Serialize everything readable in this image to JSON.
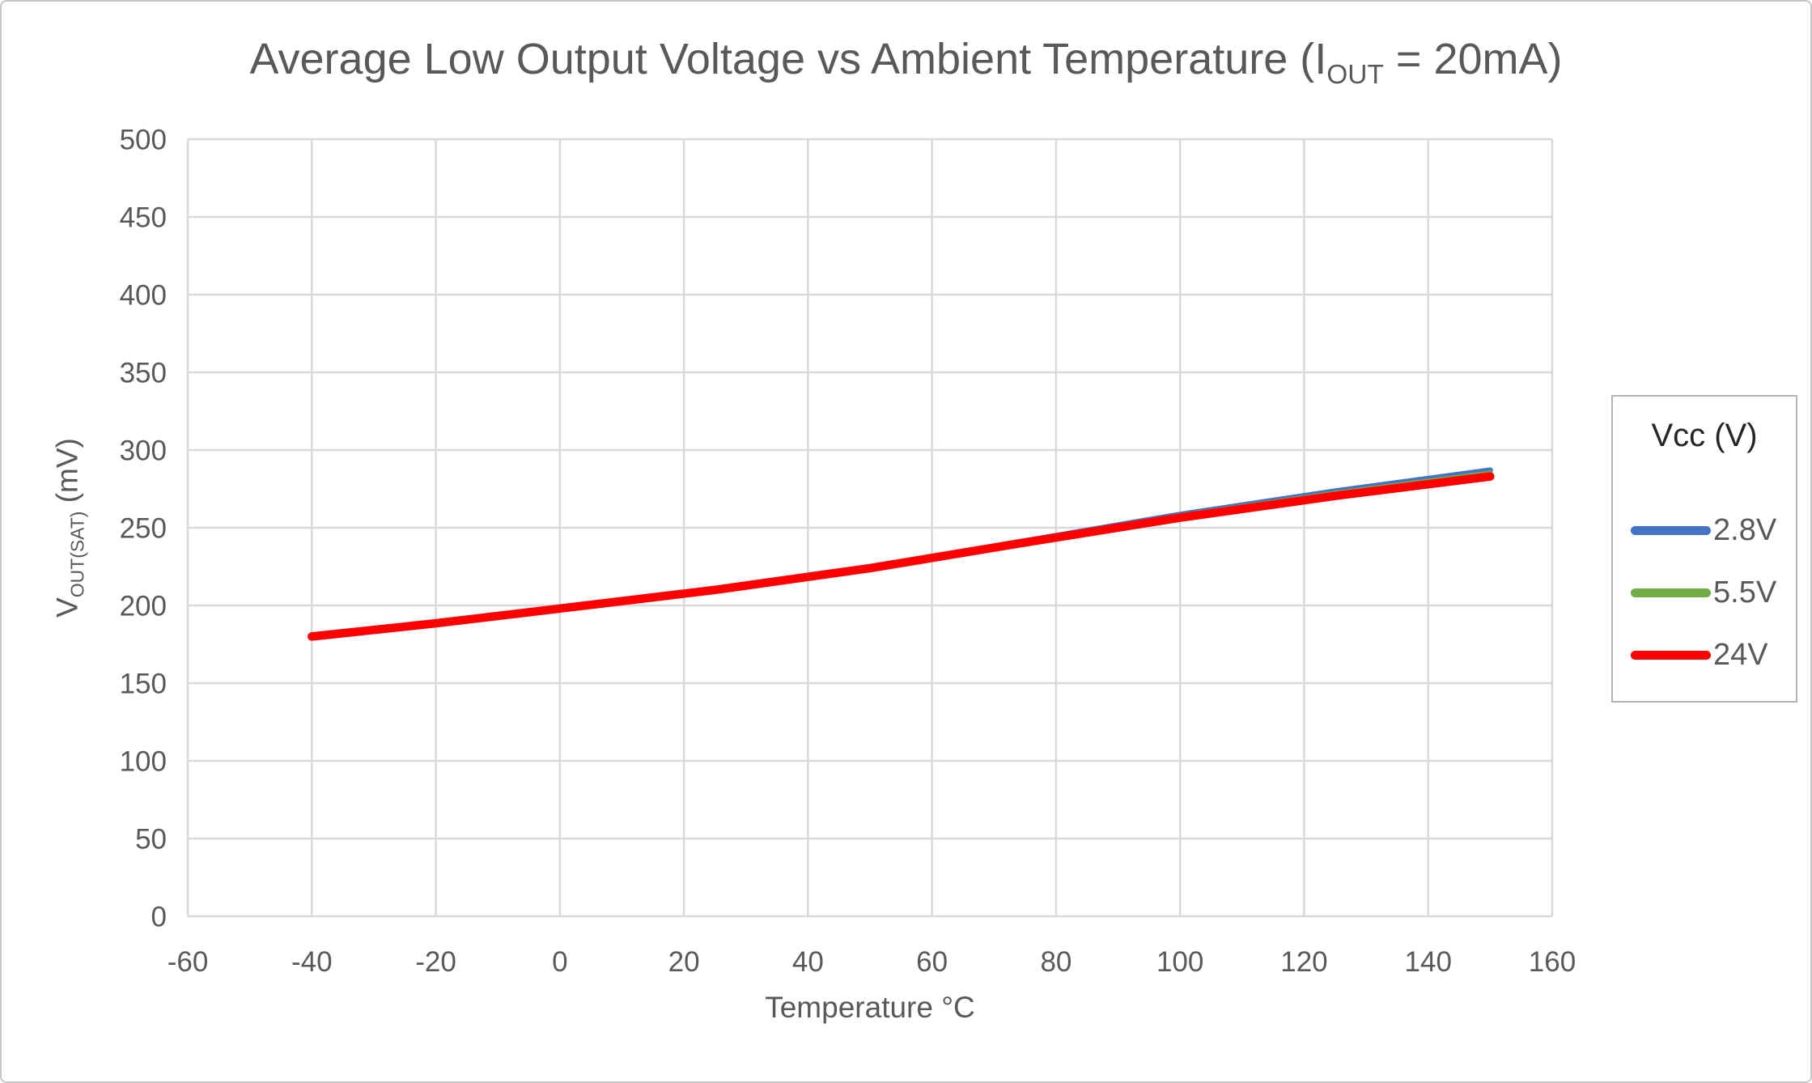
{
  "chart_title": {
    "text_before_sub": "Average Low Output Voltage vs Ambient Temperature (I",
    "subscript": "OUT",
    "text_after_sub": " = 20mA)"
  },
  "y_axis_title": {
    "main": "V",
    "subscript": "OUT(SAT)",
    "unit": " (mV)"
  },
  "x_axis_title": "Temperature °C",
  "legend": {
    "title": "Vcc (V)",
    "entries": [
      {
        "label": "2.8V",
        "color": "#4472C4"
      },
      {
        "label": "5.5V",
        "color": "#70AD47"
      },
      {
        "label": "24V",
        "color": "#FF0000"
      }
    ]
  },
  "chart_data": {
    "type": "line",
    "title": "Average Low Output Voltage vs Ambient Temperature (I_OUT = 20mA)",
    "xlabel": "Temperature °C",
    "ylabel": "V_OUT(SAT) (mV)",
    "xlim": [
      -60,
      160
    ],
    "ylim": [
      0,
      500
    ],
    "x_ticks": [
      -60,
      -40,
      -20,
      0,
      20,
      40,
      60,
      80,
      100,
      120,
      140,
      160
    ],
    "y_ticks": [
      0,
      50,
      100,
      150,
      200,
      250,
      300,
      350,
      400,
      450,
      500
    ],
    "grid": true,
    "legend_position": "right",
    "legend_title": "Vcc (V)",
    "x": [
      -40,
      -20,
      0,
      25,
      50,
      75,
      100,
      125,
      150
    ],
    "series": [
      {
        "name": "2.8V",
        "color": "#4472C4",
        "stroke_width": 7,
        "values": [
          180,
          188.5,
          198,
          210,
          224,
          241.5,
          258.5,
          273.5,
          287
        ]
      },
      {
        "name": "5.5V",
        "color": "#70AD47",
        "stroke_width": 7,
        "values": [
          180,
          188.5,
          198,
          210,
          224,
          241,
          257.5,
          272,
          285
        ]
      },
      {
        "name": "24V",
        "color": "#FF0000",
        "stroke_width": 10.5,
        "values": [
          180,
          188.5,
          198,
          210,
          224,
          240.5,
          256.5,
          270.5,
          283
        ]
      }
    ]
  },
  "colors": {
    "text": "#595959",
    "grid": "#D9D9D9",
    "legend_border": "#B4B4B4",
    "legend_title_text": "#262626",
    "canvas_border": "#C6C6C6",
    "background": "#FFFFFF"
  }
}
